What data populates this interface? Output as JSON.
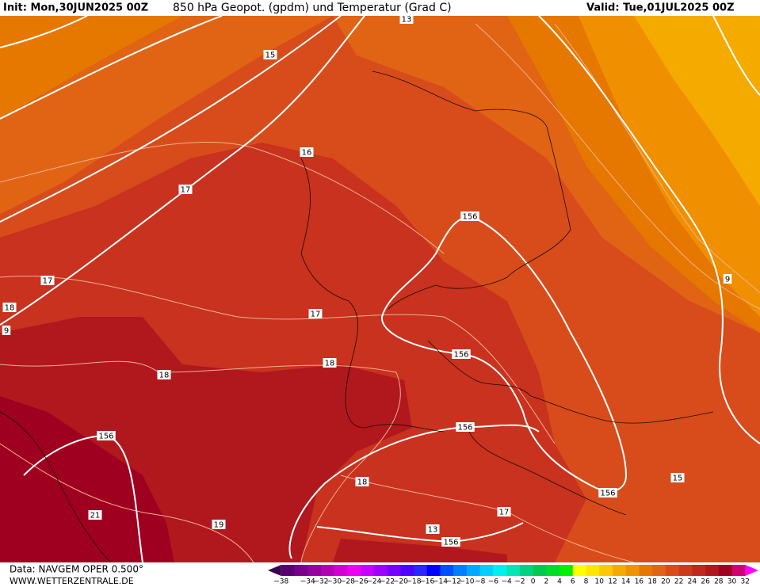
{
  "header": {
    "init": "Init: Mon,30JUN2025 00Z",
    "title": "850 hPa Geopot. (gpdm) und Temperatur (Grad C)",
    "valid": "Valid: Tue,01JUL2025 00Z"
  },
  "map": {
    "contour_labels": [
      "13",
      "15",
      "16",
      "17",
      "17",
      "18",
      "9",
      "17",
      "156",
      "156",
      "18",
      "18",
      "156",
      "156",
      "15",
      "156",
      "18",
      "17",
      "21",
      "19",
      "13",
      "156",
      "9"
    ]
  },
  "footer": {
    "source": "Data: NAVGEM OPER 0.500°",
    "website": "WWW.WETTERZENTRALE.DE"
  },
  "colorbar": {
    "labels": [
      "−38",
      null,
      "−34",
      "−32",
      "−30",
      "−28",
      "−26",
      "−24",
      "−22",
      "−20",
      "−18",
      "−16",
      "−14",
      "−12",
      "−10",
      "−8",
      "−6",
      "−4",
      "−2",
      "0",
      "2",
      "4",
      "6",
      "8",
      "10",
      "12",
      "14",
      "16",
      "18",
      "20",
      "22",
      "24",
      "26",
      "28",
      "30",
      "32"
    ],
    "colors": [
      "#3c0050",
      "#5a006e",
      "#78008c",
      "#9600a0",
      "#b400b4",
      "#d200d2",
      "#f000f0",
      "#c800ff",
      "#a000ff",
      "#7800ff",
      "#5000ff",
      "#2828ff",
      "#0000ff",
      "#0050ff",
      "#0080ff",
      "#00a8ff",
      "#00d0ff",
      "#00f0f0",
      "#00e6b4",
      "#00d282",
      "#00c850",
      "#00dc28",
      "#00f000",
      "#ffff00",
      "#ffe600",
      "#ffc800",
      "#f5aa00",
      "#ee9400",
      "#e67800",
      "#e06414",
      "#d84c1c",
      "#cc3a1e",
      "#c0281e",
      "#b0181e",
      "#a00020",
      "#d0006e",
      "#ff00ff"
    ]
  }
}
